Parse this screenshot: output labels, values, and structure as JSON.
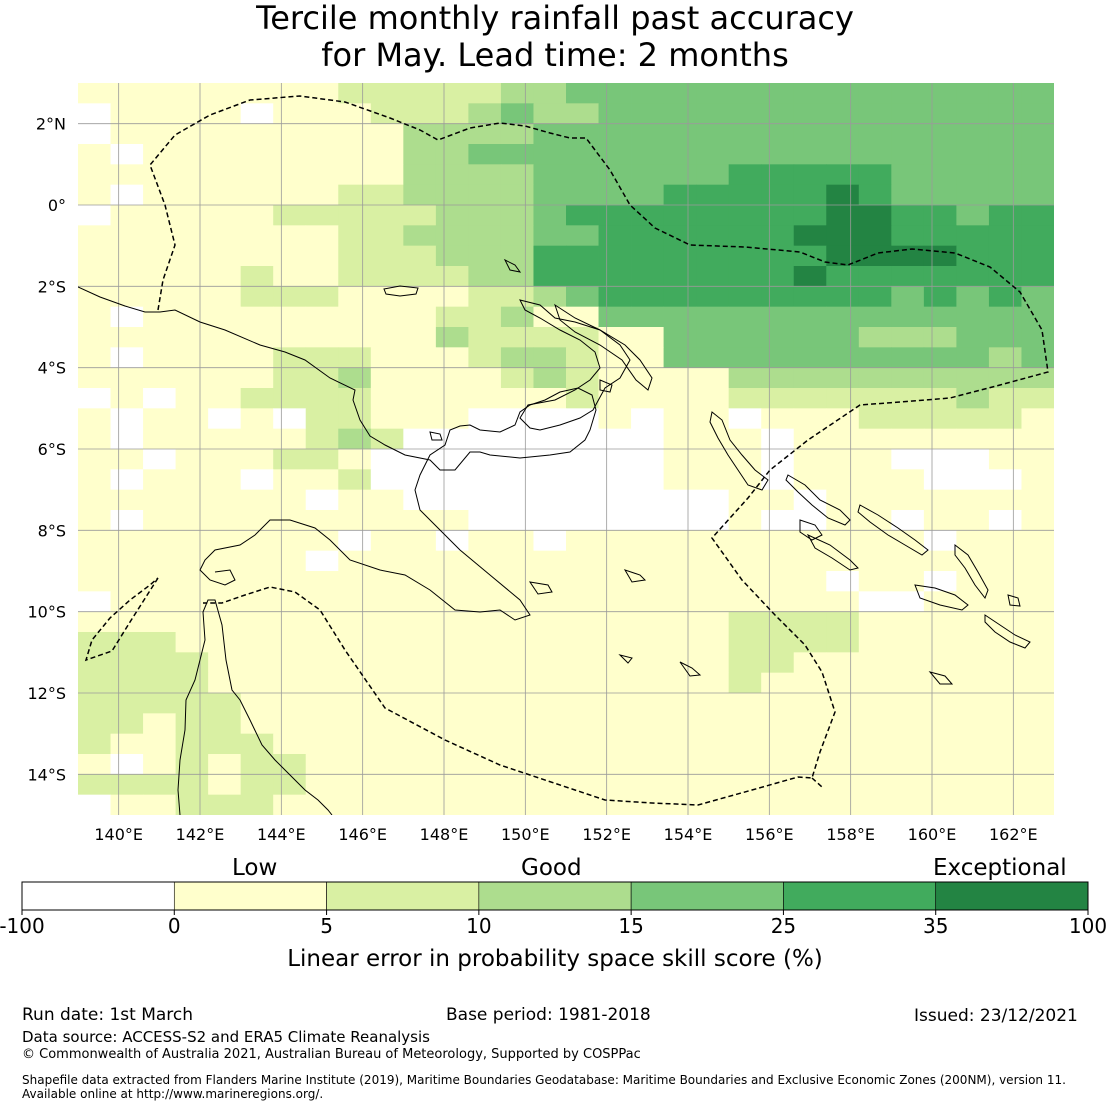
{
  "title": {
    "line1": "Tercile monthly rainfall past accuracy",
    "line2": "for May. Lead time: 2 months"
  },
  "map": {
    "lon_range": [
      139,
      163
    ],
    "lat_range": [
      -15,
      3
    ],
    "x_ticks": [
      {
        "lon": 140,
        "label": "140°E"
      },
      {
        "lon": 142,
        "label": "142°E"
      },
      {
        "lon": 144,
        "label": "144°E"
      },
      {
        "lon": 146,
        "label": "146°E"
      },
      {
        "lon": 148,
        "label": "148°E"
      },
      {
        "lon": 150,
        "label": "150°E"
      },
      {
        "lon": 152,
        "label": "152°E"
      },
      {
        "lon": 154,
        "label": "154°E"
      },
      {
        "lon": 156,
        "label": "156°E"
      },
      {
        "lon": 158,
        "label": "158°E"
      },
      {
        "lon": 160,
        "label": "160°E"
      },
      {
        "lon": 162,
        "label": "162°E"
      }
    ],
    "y_ticks": [
      {
        "lat": 2,
        "label": "2°N"
      },
      {
        "lat": 0,
        "label": "0°"
      },
      {
        "lat": -2,
        "label": "2°S"
      },
      {
        "lat": -4,
        "label": "4°S"
      },
      {
        "lat": -6,
        "label": "6°S"
      },
      {
        "lat": -8,
        "label": "8°S"
      },
      {
        "lat": -10,
        "label": "10°S"
      },
      {
        "lat": -12,
        "label": "12°S"
      },
      {
        "lat": -14,
        "label": "14°S"
      }
    ],
    "skill_grid_rows_north_to_south": [
      "111111112222233444444444444444",
      "011110111222343344444444444444",
      "011111111133334444444444444444",
      "101111111133444444444444444444",
      "111111111133334444445555544444",
      "101111112233334444555556544444",
      "011111222223334555555556655455",
      "111111112233334455555566655555",
      "111111112223335555555556666555",
      "111112112222335555555565555555",
      "111112221111223455555555545454",
      "101111111112231144444444444444",
      "111111111113222211444444333444",
      "101111222111233211444444444434",
      "111111223111123211113333333333",
      "010112222111111211112222222322",
      "101101022111000010110111222221",
      "101111123200000000111011111111",
      "110111221000000000111011100011",
      "101110112000000000111011110001",
      "111111101100000000001101111111",
      "101111111111000000001001101101",
      "111111110110110111111111110111",
      "111111101111111111111111111111",
      "111111111111111111111110110111",
      "011111111111111111111111001111",
      "111111111111111111112222111111",
      "222111111111111111112222111111",
      "222211111111111111112211111111",
      "222211111111111111112111111111",
      "222221111111111111111111111111",
      "221221111111111111111111111111",
      "211222111111111111111111111111",
      "101212211111111111111111111111",
      "222212211111111111111111111111",
      "011222111111111111111111111111"
    ]
  },
  "colorbar": {
    "category_labels": {
      "low": "Low",
      "good": "Good",
      "exceptional": "Exceptional"
    },
    "bins": [
      {
        "from": -100,
        "to": 0,
        "color": "#ffffff"
      },
      {
        "from": 0,
        "to": 5,
        "color": "#ffffcc"
      },
      {
        "from": 5,
        "to": 10,
        "color": "#d9f0a3"
      },
      {
        "from": 10,
        "to": 15,
        "color": "#addd8e"
      },
      {
        "from": 15,
        "to": 25,
        "color": "#78c679"
      },
      {
        "from": 25,
        "to": 35,
        "color": "#41ab5d"
      },
      {
        "from": 35,
        "to": 100,
        "color": "#238443"
      }
    ],
    "tick_labels": [
      "-100",
      "0",
      "5",
      "10",
      "15",
      "25",
      "35",
      "100"
    ],
    "axis_label": "Linear error in probability space skill score (%)"
  },
  "footer": {
    "run_date": "Run date: 1st March",
    "base_period": "Base period: 1981-2018",
    "issued": "Issued: 23/12/2021",
    "data_source": "Data source: ACCESS-S2 and ERA5 Climate Reanalysis",
    "copyright": "© Commonwealth of Australia 2021, Australian Bureau of Meteorology, Supported by COSPPac",
    "shapefile_line1": "Shapefile data extracted from Flanders Marine Institute (2019), Maritime Boundaries Geodatabase: Maritime Boundaries and Exclusive Economic Zones (200NM), version 11.",
    "shapefile_line2": "Available online at http://www.marineregions.org/."
  }
}
